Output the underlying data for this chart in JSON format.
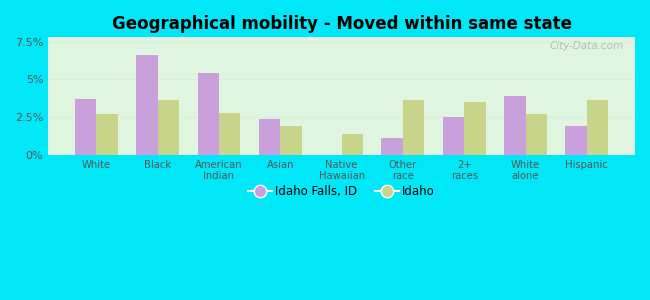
{
  "title": "Geographical mobility - Moved within same state",
  "categories": [
    "White",
    "Black",
    "American\nIndian",
    "Asian",
    "Native\nHawaiian",
    "Other\nrace",
    "2+\nraces",
    "White\nalone",
    "Hispanic"
  ],
  "idaho_falls": [
    3.7,
    6.6,
    5.4,
    2.4,
    0.0,
    1.1,
    2.5,
    3.9,
    1.9
  ],
  "idaho": [
    2.7,
    3.6,
    2.8,
    1.9,
    1.4,
    3.6,
    3.5,
    2.7,
    3.6
  ],
  "idaho_falls_color": "#c9a0dc",
  "idaho_color": "#c8d48a",
  "bar_width": 0.35,
  "ylim": [
    0,
    7.8
  ],
  "ytick_vals": [
    0,
    2.5,
    5.0,
    7.5
  ],
  "yticklabels": [
    "0%",
    "2.5%",
    "5%",
    "7.5%"
  ],
  "plot_bg_top": "#e0f5e0",
  "plot_bg_bottom": "#f0fff0",
  "outer_background": "#00e8f8",
  "legend_idaho_falls": "Idaho Falls, ID",
  "legend_idaho": "Idaho",
  "watermark": "City-Data.com",
  "grid_color": "#d8f0d8"
}
